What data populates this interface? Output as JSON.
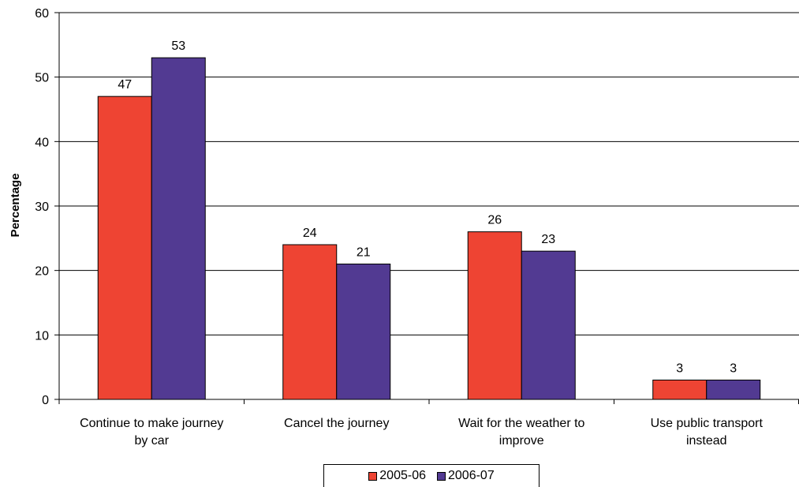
{
  "chart_data": {
    "type": "bar",
    "categories": [
      [
        "Continue to make journey",
        "by car"
      ],
      [
        "Cancel the journey"
      ],
      [
        "Wait for the weather to",
        "improve"
      ],
      [
        "Use public transport",
        "instead"
      ]
    ],
    "series": [
      {
        "name": "2005-06",
        "color": "#ee4433",
        "values": [
          47,
          24,
          26,
          3
        ]
      },
      {
        "name": "2006-07",
        "color": "#523a92",
        "values": [
          53,
          21,
          23,
          3
        ]
      }
    ],
    "title": "",
    "xlabel": "",
    "ylabel": "Percentage",
    "ylim": [
      0,
      60
    ],
    "yticks": [
      0,
      10,
      20,
      30,
      40,
      50,
      60
    ],
    "grid": true,
    "legend_position": "bottom",
    "data_labels": true
  }
}
